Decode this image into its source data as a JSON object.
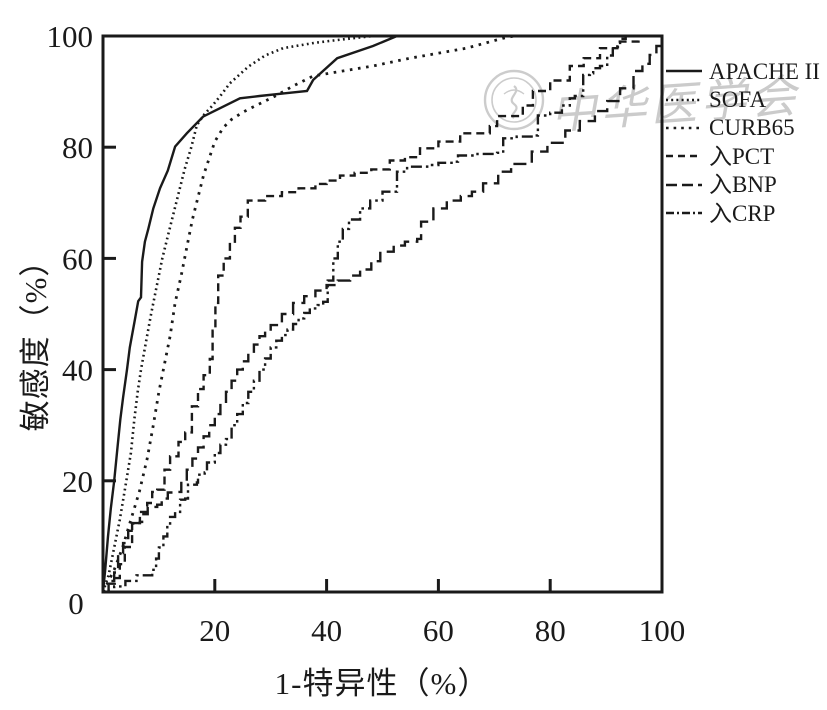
{
  "figure": {
    "background": "#ffffff",
    "ink_color": "#1a1a1a",
    "watermark": {
      "text": "中华医学会",
      "color": "#cbcbcb"
    }
  },
  "chart_data": {
    "type": "line",
    "title": "",
    "xlabel": "1-特异性（%）",
    "ylabel": "敏感度（%）",
    "xlim": [
      0,
      100
    ],
    "ylim": [
      0,
      100
    ],
    "grid": false,
    "legend_position": "right-outside",
    "origin_label": "0",
    "xticks": [
      20,
      40,
      60,
      80,
      100
    ],
    "yticks": [
      20,
      40,
      60,
      80,
      100
    ],
    "series": [
      {
        "name": "APACHE II",
        "style": "solid",
        "step": false,
        "points": [
          [
            0,
            0
          ],
          [
            0.4,
            4
          ],
          [
            0.9,
            10
          ],
          [
            1.4,
            15
          ],
          [
            2,
            20
          ],
          [
            2.6,
            26
          ],
          [
            3.1,
            31
          ],
          [
            3.6,
            35
          ],
          [
            4.3,
            40
          ],
          [
            4.8,
            44
          ],
          [
            5.7,
            49
          ],
          [
            6.3,
            52.3
          ],
          [
            6.8,
            53
          ],
          [
            7,
            59.4
          ],
          [
            7.5,
            63
          ],
          [
            8.1,
            65.3
          ],
          [
            9,
            69
          ],
          [
            10.2,
            72.6
          ],
          [
            11.6,
            75.8
          ],
          [
            12.9,
            80.1
          ],
          [
            15,
            82.5
          ],
          [
            17.9,
            85.5
          ],
          [
            20.9,
            87
          ],
          [
            24.5,
            88.8
          ],
          [
            28,
            89.2
          ],
          [
            32.5,
            89.7
          ],
          [
            36.5,
            90.1
          ],
          [
            37.6,
            92.1
          ],
          [
            41.9,
            96
          ],
          [
            48.3,
            98.2
          ],
          [
            52.6,
            100
          ],
          [
            100,
            100
          ]
        ]
      },
      {
        "name": "SOFA",
        "style": "fine-dotted",
        "step": false,
        "points": [
          [
            0,
            0
          ],
          [
            1,
            3
          ],
          [
            2,
            8
          ],
          [
            3,
            13
          ],
          [
            4,
            19
          ],
          [
            5,
            25
          ],
          [
            5.6,
            31
          ],
          [
            6.2,
            36
          ],
          [
            6.8,
            40
          ],
          [
            7.7,
            45
          ],
          [
            8.6,
            50
          ],
          [
            9.6,
            55
          ],
          [
            10.6,
            60
          ],
          [
            11.6,
            64
          ],
          [
            12.6,
            68
          ],
          [
            13.6,
            72
          ],
          [
            14.6,
            76
          ],
          [
            15.8,
            80
          ],
          [
            16.8,
            84
          ],
          [
            18.2,
            86
          ],
          [
            19.6,
            87.5
          ],
          [
            21.2,
            89.5
          ],
          [
            22.7,
            91.5
          ],
          [
            26,
            94.5
          ],
          [
            29,
            96.5
          ],
          [
            32.2,
            97.8
          ],
          [
            38,
            98.8
          ],
          [
            43,
            99.4
          ],
          [
            48.3,
            100
          ],
          [
            100,
            100
          ]
        ]
      },
      {
        "name": "CURB65",
        "style": "dotted",
        "step": false,
        "points": [
          [
            0,
            0
          ],
          [
            2,
            4
          ],
          [
            3.5,
            8
          ],
          [
            5,
            13
          ],
          [
            6.5,
            18
          ],
          [
            7.9,
            24
          ],
          [
            9,
            30
          ],
          [
            10,
            36
          ],
          [
            11,
            41
          ],
          [
            12,
            46
          ],
          [
            12.9,
            52
          ],
          [
            14,
            57
          ],
          [
            15,
            62
          ],
          [
            16,
            67
          ],
          [
            17,
            71
          ],
          [
            18,
            75
          ],
          [
            19,
            78
          ],
          [
            20,
            81
          ],
          [
            21.5,
            83.5
          ],
          [
            23,
            85
          ],
          [
            25,
            86.3
          ],
          [
            27,
            87.3
          ],
          [
            29,
            88.3
          ],
          [
            31,
            89.3
          ],
          [
            34,
            91
          ],
          [
            37.6,
            92.8
          ],
          [
            42.9,
            93.7
          ],
          [
            48.3,
            94.6
          ],
          [
            54.9,
            96
          ],
          [
            60,
            96.9
          ],
          [
            65,
            97.8
          ],
          [
            71.6,
            99.6
          ],
          [
            73.5,
            100
          ],
          [
            100,
            100
          ]
        ]
      },
      {
        "name": "入PCT",
        "style": "short-dash",
        "step": true,
        "points": [
          [
            0,
            0
          ],
          [
            1,
            1.5
          ],
          [
            2.1,
            2.5
          ],
          [
            3,
            5
          ],
          [
            3.9,
            8.1
          ],
          [
            5.2,
            12.4
          ],
          [
            6.6,
            14.4
          ],
          [
            7.9,
            16
          ],
          [
            8.8,
            18
          ],
          [
            9.7,
            18.4
          ],
          [
            11,
            22
          ],
          [
            12,
            24.4
          ],
          [
            13.5,
            27
          ],
          [
            14.7,
            28.7
          ],
          [
            15.9,
            33.4
          ],
          [
            17,
            36.5
          ],
          [
            18,
            39
          ],
          [
            19.1,
            41.9
          ],
          [
            19.6,
            47
          ],
          [
            20.1,
            52
          ],
          [
            20.6,
            56.9
          ],
          [
            21.6,
            60
          ],
          [
            22.7,
            63
          ],
          [
            23.6,
            65.5
          ],
          [
            24.6,
            67.5
          ],
          [
            25.9,
            70.4
          ],
          [
            29,
            71.2
          ],
          [
            32,
            71.9
          ],
          [
            35,
            72.6
          ],
          [
            38,
            73.4
          ],
          [
            40,
            74
          ],
          [
            42.4,
            74.9
          ],
          [
            45,
            75.4
          ],
          [
            48,
            76
          ],
          [
            51.3,
            77.6
          ],
          [
            54,
            78.2
          ],
          [
            56.7,
            79.8
          ],
          [
            60,
            81
          ],
          [
            63.9,
            82.5
          ],
          [
            69.2,
            83.8
          ],
          [
            70.5,
            85.6
          ],
          [
            75.1,
            87.5
          ],
          [
            76.9,
            90.1
          ],
          [
            80,
            92
          ],
          [
            83.5,
            94.6
          ],
          [
            86,
            96
          ],
          [
            88.9,
            97.8
          ],
          [
            92,
            99
          ],
          [
            95.8,
            100
          ],
          [
            100,
            100
          ]
        ]
      },
      {
        "name": "入BNP",
        "style": "long-dash",
        "step": true,
        "points": [
          [
            0,
            0
          ],
          [
            1,
            2
          ],
          [
            2,
            3.5
          ],
          [
            2.7,
            7
          ],
          [
            3.6,
            8.8
          ],
          [
            4.5,
            11
          ],
          [
            5.4,
            12.4
          ],
          [
            6.6,
            12.6
          ],
          [
            7,
            14
          ],
          [
            8,
            15.3
          ],
          [
            9.7,
            15.7
          ],
          [
            10.5,
            16.8
          ],
          [
            11.6,
            17.9
          ],
          [
            13.2,
            18
          ],
          [
            14,
            20
          ],
          [
            15,
            22
          ],
          [
            16,
            24
          ],
          [
            17,
            26
          ],
          [
            18,
            28
          ],
          [
            19,
            30
          ],
          [
            20,
            32
          ],
          [
            21,
            34
          ],
          [
            22,
            36
          ],
          [
            23,
            38
          ],
          [
            24,
            40
          ],
          [
            25,
            41.5
          ],
          [
            26,
            43
          ],
          [
            27,
            44.5
          ],
          [
            28,
            46
          ],
          [
            29,
            47
          ],
          [
            30,
            48
          ],
          [
            32,
            50
          ],
          [
            34,
            52
          ],
          [
            36,
            53.2
          ],
          [
            38,
            54.2
          ],
          [
            40,
            55.2
          ],
          [
            42,
            56
          ],
          [
            44.2,
            56.9
          ],
          [
            46,
            58
          ],
          [
            48,
            59.5
          ],
          [
            49.6,
            61.2
          ],
          [
            52,
            62.3
          ],
          [
            54,
            63
          ],
          [
            56.2,
            63.5
          ],
          [
            56.9,
            66.6
          ],
          [
            59.1,
            69
          ],
          [
            61.5,
            70.4
          ],
          [
            64,
            71.2
          ],
          [
            66,
            72
          ],
          [
            68,
            73.5
          ],
          [
            70.7,
            75.6
          ],
          [
            73,
            77
          ],
          [
            76.7,
            79.2
          ],
          [
            79.5,
            80.8
          ],
          [
            82.7,
            83
          ],
          [
            85.3,
            84.7
          ],
          [
            88,
            86.5
          ],
          [
            90.2,
            88.3
          ],
          [
            92.5,
            90.6
          ],
          [
            94.9,
            93.7
          ],
          [
            96.5,
            95
          ],
          [
            97.8,
            96.6
          ],
          [
            99,
            98.2
          ],
          [
            100,
            100
          ]
        ]
      },
      {
        "name": "入CRP",
        "style": "dash-dot-dot",
        "step": true,
        "points": [
          [
            0,
            0
          ],
          [
            2,
            1
          ],
          [
            4,
            2
          ],
          [
            6,
            3
          ],
          [
            8.8,
            4
          ],
          [
            9.5,
            6
          ],
          [
            10,
            8
          ],
          [
            10.8,
            10
          ],
          [
            11.5,
            12
          ],
          [
            12,
            13.5
          ],
          [
            12.9,
            14.4
          ],
          [
            13.8,
            16.6
          ],
          [
            14.7,
            16.8
          ],
          [
            15.2,
            19.3
          ],
          [
            16.8,
            19.7
          ],
          [
            17,
            21.1
          ],
          [
            18.2,
            21.5
          ],
          [
            18.6,
            23.3
          ],
          [
            20,
            25
          ],
          [
            21,
            26.5
          ],
          [
            22,
            27.5
          ],
          [
            23,
            30
          ],
          [
            24,
            32
          ],
          [
            25,
            34
          ],
          [
            26,
            36
          ],
          [
            27,
            38
          ],
          [
            28,
            40
          ],
          [
            29,
            42
          ],
          [
            30,
            44
          ],
          [
            31,
            45.2
          ],
          [
            32,
            46.2
          ],
          [
            33,
            47.2
          ],
          [
            34,
            48.2
          ],
          [
            35,
            49.2
          ],
          [
            36,
            50.2
          ],
          [
            37,
            51
          ],
          [
            38.4,
            51.6
          ],
          [
            39.4,
            52.2
          ],
          [
            40.2,
            56
          ],
          [
            41.2,
            60
          ],
          [
            42,
            63
          ],
          [
            42.9,
            65.3
          ],
          [
            44,
            67
          ],
          [
            46,
            69
          ],
          [
            47.8,
            70.4
          ],
          [
            50,
            72
          ],
          [
            52.6,
            75.6
          ],
          [
            54.4,
            76.5
          ],
          [
            58,
            76.8
          ],
          [
            60,
            77.2
          ],
          [
            62.6,
            77.4
          ],
          [
            63.5,
            78.5
          ],
          [
            67,
            78.8
          ],
          [
            70.5,
            79
          ],
          [
            71.6,
            81.6
          ],
          [
            74,
            81.9
          ],
          [
            77.6,
            82.1
          ],
          [
            77.8,
            85.7
          ],
          [
            80,
            86.2
          ],
          [
            82.1,
            87.5
          ],
          [
            83.5,
            88.8
          ],
          [
            84.4,
            89.2
          ],
          [
            85.9,
            93
          ],
          [
            87.1,
            93.3
          ],
          [
            87.7,
            94.2
          ],
          [
            88.9,
            94.6
          ],
          [
            90.2,
            96.5
          ],
          [
            91.2,
            98
          ],
          [
            92.5,
            99.5
          ],
          [
            93.5,
            100
          ],
          [
            100,
            100
          ]
        ]
      }
    ]
  }
}
